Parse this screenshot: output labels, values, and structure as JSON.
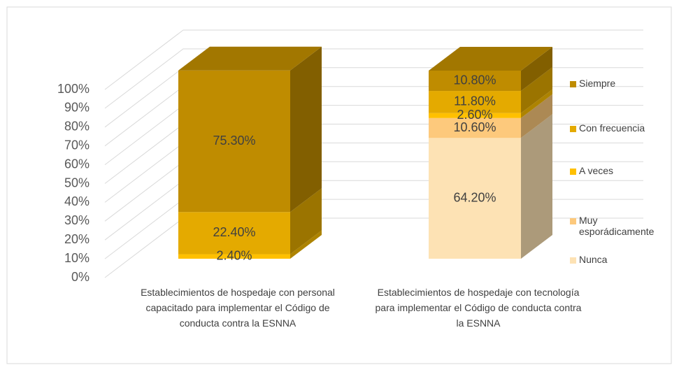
{
  "chart_data": {
    "type": "bar3d_stacked",
    "categories": [
      "Establecimientos de hospedaje con personal capacitado para implementar el Código de conducta contra la ESNNA",
      "Establecimientos de hospedaje con tecnología para implementar el Código de conducta contra la ESNNA"
    ],
    "series": [
      {
        "name": "Nunca",
        "color": "#fde2b4",
        "values": [
          null,
          64.2
        ],
        "value_labels": [
          null,
          "64.20%"
        ]
      },
      {
        "name": "Muy esporádicamente",
        "color": "#fdc97c",
        "values": [
          null,
          10.6
        ],
        "value_labels": [
          null,
          "10.60%"
        ]
      },
      {
        "name": "A veces",
        "color": "#ffc000",
        "values": [
          2.4,
          2.6
        ],
        "value_labels": [
          "2.40%",
          "2.60%"
        ]
      },
      {
        "name": "Con frecuencia",
        "color": "#e4aa00",
        "values": [
          22.4,
          11.8
        ],
        "value_labels": [
          "22.40%",
          "11.80%"
        ]
      },
      {
        "name": "Siempre",
        "color": "#bf8c00",
        "values": [
          75.3,
          10.8
        ],
        "value_labels": [
          "75.30%",
          "10.80%"
        ]
      }
    ],
    "ylim": [
      0,
      100
    ],
    "yticks": [
      {
        "value": 0,
        "label": "0%"
      },
      {
        "value": 10,
        "label": "10%"
      },
      {
        "value": 20,
        "label": "20%"
      },
      {
        "value": 30,
        "label": "30%"
      },
      {
        "value": 40,
        "label": "40%"
      },
      {
        "value": 50,
        "label": "50%"
      },
      {
        "value": 60,
        "label": "60%"
      },
      {
        "value": 70,
        "label": "70%"
      },
      {
        "value": 80,
        "label": "80%"
      },
      {
        "value": 90,
        "label": "90%"
      },
      {
        "value": 100,
        "label": "100%"
      }
    ],
    "grid": true,
    "legend": "right"
  }
}
